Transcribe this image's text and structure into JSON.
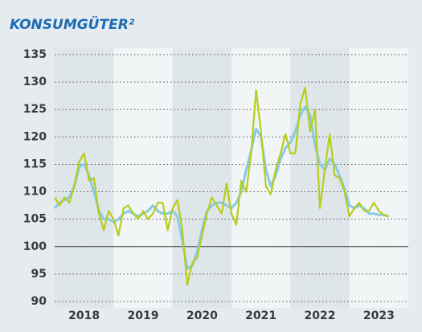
{
  "chart_data": {
    "type": "line",
    "title": "KONSUMGÜTER²",
    "x": [
      2018,
      2018.083,
      2018.167,
      2018.25,
      2018.333,
      2018.417,
      2018.5,
      2018.583,
      2018.667,
      2018.75,
      2018.833,
      2018.917,
      2019,
      2019.083,
      2019.167,
      2019.25,
      2019.333,
      2019.417,
      2019.5,
      2019.583,
      2019.667,
      2019.75,
      2019.833,
      2019.917,
      2020,
      2020.083,
      2020.167,
      2020.25,
      2020.333,
      2020.417,
      2020.5,
      2020.583,
      2020.667,
      2020.75,
      2020.833,
      2020.917,
      2021,
      2021.083,
      2021.167,
      2021.25,
      2021.333,
      2021.417,
      2021.5,
      2021.583,
      2021.667,
      2021.75,
      2021.833,
      2021.917,
      2022,
      2022.083,
      2022.167,
      2022.25,
      2022.333,
      2022.417,
      2022.5,
      2022.583,
      2022.667,
      2022.75,
      2022.833,
      2022.917,
      2023,
      2023.083,
      2023.167,
      2023.25,
      2023.333,
      2023.417,
      2023.5,
      2023.583,
      2023.667
    ],
    "series": [
      {
        "color": "#86cbe6",
        "values": [
          107,
          108,
          108.5,
          109,
          111,
          114.5,
          115,
          113,
          110,
          106.5,
          105,
          105,
          104.5,
          105,
          106,
          106.5,
          106,
          105.5,
          106,
          106.5,
          107.5,
          106.5,
          106,
          106,
          106.5,
          105.5,
          101,
          96,
          96.5,
          99,
          103,
          106.5,
          107.5,
          108,
          108,
          107.5,
          107,
          108,
          110,
          114,
          117.5,
          121.5,
          120,
          114,
          111,
          113,
          116,
          118,
          119,
          121,
          124,
          125.5,
          124,
          118.5,
          115,
          114,
          116,
          115,
          113,
          110.5,
          107.5,
          107,
          107.5,
          107,
          106,
          106,
          105.8,
          105.8,
          105.5
        ]
      },
      {
        "color": "#b9cc1c",
        "values": [
          109,
          107.5,
          109,
          108,
          111,
          115.5,
          117,
          112,
          112.5,
          106,
          103,
          106.5,
          105,
          102,
          107,
          107.5,
          106,
          105,
          106.5,
          105,
          106,
          108,
          108,
          103,
          107,
          108.5,
          103,
          93,
          97,
          98,
          102,
          106,
          109,
          107.5,
          106,
          111.5,
          106,
          104,
          112,
          110,
          117,
          128.5,
          121,
          111,
          109.5,
          114,
          117,
          120.5,
          117,
          117,
          126,
          129,
          121,
          125,
          107,
          114,
          120.5,
          113,
          112.5,
          110,
          105.5,
          107,
          108,
          106.5,
          106.5,
          108,
          106.5,
          105.8,
          105.5
        ]
      }
    ],
    "xlim": [
      2018,
      2024
    ],
    "xticks": [
      {
        "value": 2018.5,
        "label": "2018"
      },
      {
        "value": 2019.5,
        "label": "2019"
      },
      {
        "value": 2020.5,
        "label": "2020"
      },
      {
        "value": 2021.5,
        "label": "2021"
      },
      {
        "value": 2022.5,
        "label": "2022"
      },
      {
        "value": 2023.5,
        "label": "2023"
      }
    ],
    "ylim": [
      90,
      135
    ],
    "yticks": [
      90,
      95,
      100,
      105,
      110,
      115,
      120,
      125,
      130,
      135
    ],
    "grid": true
  }
}
